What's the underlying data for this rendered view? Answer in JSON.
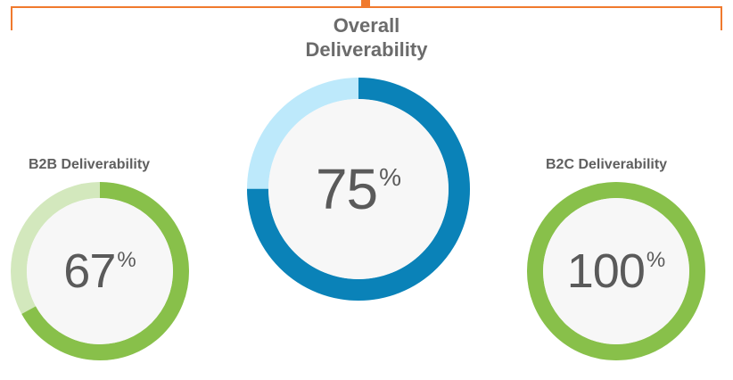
{
  "colors": {
    "bracket": "#f07a2e",
    "inner_fill": "#f7f7f7",
    "overall_value": "#0a82b8",
    "overall_remainder": "#bde9fb",
    "b2b_value": "#88c04a",
    "b2b_remainder": "#d3e8bd",
    "b2c_value": "#88c04a",
    "b2c_remainder": "#d3e8bd"
  },
  "chart_data": [
    {
      "type": "pie",
      "title": "Overall Deliverability",
      "title_lines": [
        "Overall",
        "Deliverability"
      ],
      "value": 75,
      "display_value": "75",
      "unit": "%"
    },
    {
      "type": "pie",
      "title": "B2B Deliverability",
      "value": 67,
      "display_value": "67",
      "unit": "%"
    },
    {
      "type": "pie",
      "title": "B2C Deliverability",
      "value": 100,
      "display_value": "100",
      "unit": "%"
    }
  ]
}
